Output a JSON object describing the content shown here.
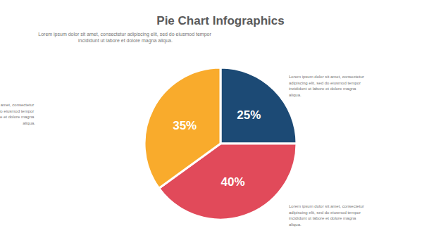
{
  "chart_data": {
    "type": "pie",
    "title": "Pie Chart Infographics",
    "subtitle": "Lorem ipsum dolor sit amet, consectetur adipiscing elit, sed do eiusmod tempor incididunt ut labore et dolore magna aliqua.",
    "values": [
      25,
      40,
      35
    ],
    "value_labels": [
      "25%",
      "40%",
      "35%"
    ],
    "colors": [
      "#1c4a75",
      "#e14a5a",
      "#f9ab2c"
    ],
    "data_labels": true,
    "annotations": [
      "Lorem ipsum dolor sit amet, consectetur adipiscing elit, sed do eiusmod tempor incididunt ut labore et dolore magna aliqua.",
      "Lorem ipsum dolor sit amet, consectetur adipiscing elit, sed do eiusmod tempor incididunt ut labore et dolore magna aliqua.",
      "Lorem ipsum dolor sit amet, consectetur adipiscing elit, sed do eiusmod tempor incididunt ut labore et dolore magna aliqua."
    ]
  }
}
